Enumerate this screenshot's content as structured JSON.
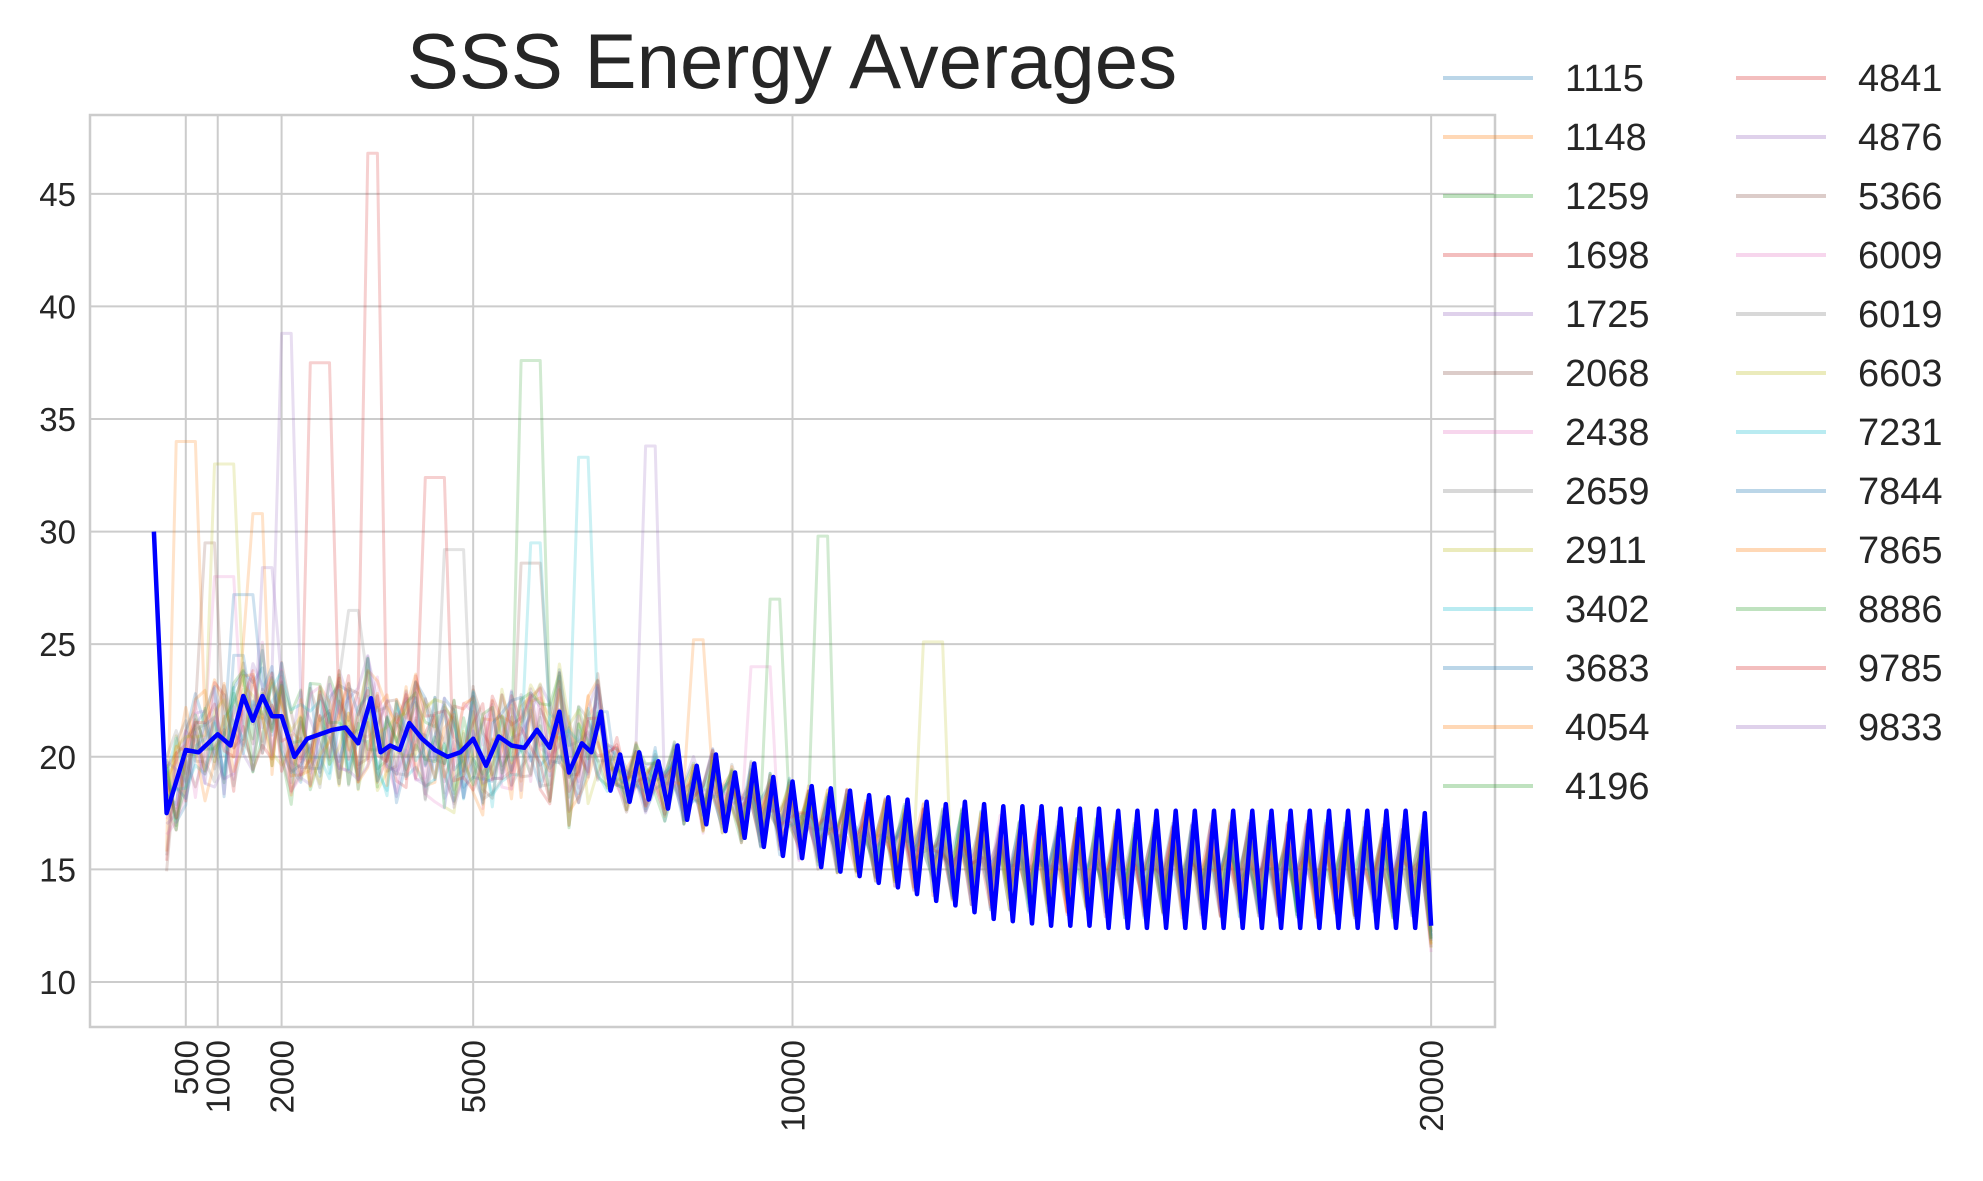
{
  "chart_data": {
    "type": "line",
    "title": "SSS Energy Averages",
    "xlabel": "",
    "ylabel": "",
    "xlim": [
      -1000,
      21000
    ],
    "ylim": [
      8,
      48.5
    ],
    "x_ticks": [
      500,
      1000,
      2000,
      5000,
      10000,
      20000
    ],
    "y_ticks": [
      10,
      15,
      20,
      25,
      30,
      35,
      40,
      45
    ],
    "grid": true,
    "legend_position": "outside-right",
    "legend_columns": 2,
    "background_series_style": "faint",
    "series": [
      {
        "name": "1115",
        "color": "#1f77b4",
        "peak": [
          7000,
          22
        ]
      },
      {
        "name": "1148",
        "color": "#ff7f0e",
        "peak": [
          500,
          34
        ]
      },
      {
        "name": "1259",
        "color": "#2ca02c",
        "peak": [
          5900,
          37.6
        ]
      },
      {
        "name": "1698",
        "color": "#d62728",
        "peak": [
          3400,
          46.8
        ]
      },
      {
        "name": "1725",
        "color": "#9467bd",
        "peak": [
          2100,
          38.8
        ]
      },
      {
        "name": "2068",
        "color": "#8c564b",
        "peak": [
          5900,
          28.6
        ]
      },
      {
        "name": "2438",
        "color": "#e377c2",
        "peak": [
          1100,
          28
        ]
      },
      {
        "name": "2659",
        "color": "#7f7f7f",
        "peak": [
          4700,
          29.2
        ]
      },
      {
        "name": "2911",
        "color": "#bcbd22",
        "peak": [
          12200,
          25.1
        ]
      },
      {
        "name": "3402",
        "color": "#17becf",
        "peak": [
          6700,
          33.3
        ]
      },
      {
        "name": "3683",
        "color": "#1f77b4",
        "peak": [
          1300,
          24.5
        ]
      },
      {
        "name": "4054",
        "color": "#ff7f0e",
        "peak": [
          1600,
          30.8
        ]
      },
      {
        "name": "4196",
        "color": "#2ca02c",
        "peak": [
          10500,
          29.8
        ]
      },
      {
        "name": "4841",
        "color": "#d62728",
        "peak": [
          2600,
          37.5
        ]
      },
      {
        "name": "4876",
        "color": "#9467bd",
        "peak": [
          7800,
          33.8
        ]
      },
      {
        "name": "5366",
        "color": "#8c564b",
        "peak": [
          900,
          29.5
        ]
      },
      {
        "name": "6009",
        "color": "#e377c2",
        "peak": [
          9500,
          24
        ]
      },
      {
        "name": "6019",
        "color": "#7f7f7f",
        "peak": [
          3100,
          26.5
        ]
      },
      {
        "name": "6603",
        "color": "#bcbd22",
        "peak": [
          1100,
          33
        ]
      },
      {
        "name": "7231",
        "color": "#17becf",
        "peak": [
          6000,
          29.5
        ]
      },
      {
        "name": "7844",
        "color": "#1f77b4",
        "peak": [
          1400,
          27.2
        ]
      },
      {
        "name": "7865",
        "color": "#ff7f0e",
        "peak": [
          8500,
          25.2
        ]
      },
      {
        "name": "8886",
        "color": "#2ca02c",
        "peak": [
          9700,
          27
        ]
      },
      {
        "name": "9785",
        "color": "#d62728",
        "peak": [
          4400,
          32.4
        ]
      },
      {
        "name": "9833",
        "color": "#9467bd",
        "peak": [
          1800,
          28.4
        ]
      }
    ],
    "average_series": {
      "color": "#0000ff",
      "points": [
        [
          0,
          30
        ],
        [
          200,
          17.5
        ],
        [
          500,
          20.3
        ],
        [
          700,
          20.2
        ],
        [
          1000,
          21.0
        ],
        [
          1200,
          20.5
        ],
        [
          1400,
          22.7
        ],
        [
          1550,
          21.6
        ],
        [
          1700,
          22.7
        ],
        [
          1850,
          21.8
        ],
        [
          2000,
          21.8
        ],
        [
          2200,
          20.0
        ],
        [
          2400,
          20.8
        ],
        [
          2600,
          21.0
        ],
        [
          2800,
          21.2
        ],
        [
          3000,
          21.3
        ],
        [
          3200,
          20.6
        ],
        [
          3400,
          22.6
        ],
        [
          3550,
          20.2
        ],
        [
          3700,
          20.5
        ],
        [
          3850,
          20.3
        ],
        [
          4000,
          21.5
        ],
        [
          4200,
          20.8
        ],
        [
          4400,
          20.3
        ],
        [
          4600,
          20.0
        ],
        [
          4800,
          20.2
        ],
        [
          5000,
          20.8
        ],
        [
          5200,
          19.6
        ],
        [
          5400,
          20.9
        ],
        [
          5600,
          20.5
        ],
        [
          5800,
          20.4
        ],
        [
          6000,
          21.2
        ],
        [
          6200,
          20.4
        ],
        [
          6350,
          22.0
        ],
        [
          6500,
          19.3
        ],
        [
          6700,
          20.6
        ],
        [
          6850,
          20.2
        ],
        [
          7000,
          22.0
        ],
        [
          7150,
          18.5
        ],
        [
          7300,
          20.1
        ],
        [
          7450,
          18.0
        ],
        [
          7600,
          20.2
        ],
        [
          7750,
          18.1
        ],
        [
          7900,
          19.8
        ],
        [
          8050,
          17.7
        ],
        [
          8200,
          20.5
        ],
        [
          8350,
          17.2
        ],
        [
          8500,
          19.6
        ],
        [
          8650,
          17.0
        ],
        [
          8800,
          20.1
        ],
        [
          8950,
          16.7
        ],
        [
          9100,
          19.3
        ],
        [
          9250,
          16.4
        ],
        [
          9400,
          19.7
        ],
        [
          9550,
          16.0
        ],
        [
          9700,
          19.1
        ],
        [
          9850,
          15.6
        ],
        [
          10000,
          18.9
        ],
        [
          10150,
          15.5
        ],
        [
          10300,
          18.7
        ],
        [
          10450,
          15.1
        ],
        [
          10600,
          18.6
        ],
        [
          10750,
          14.9
        ],
        [
          10900,
          18.5
        ],
        [
          11050,
          14.7
        ],
        [
          11200,
          18.3
        ],
        [
          11350,
          14.4
        ],
        [
          11500,
          18.2
        ],
        [
          11650,
          14.2
        ],
        [
          11800,
          18.1
        ],
        [
          11950,
          13.9
        ],
        [
          12100,
          18.0
        ],
        [
          12250,
          13.6
        ],
        [
          12400,
          17.9
        ],
        [
          12550,
          13.4
        ],
        [
          12700,
          18.0
        ],
        [
          12850,
          13.1
        ],
        [
          13000,
          17.9
        ],
        [
          13150,
          12.8
        ],
        [
          13300,
          17.8
        ],
        [
          13450,
          12.7
        ],
        [
          13600,
          17.8
        ],
        [
          13750,
          12.6
        ],
        [
          13900,
          17.8
        ],
        [
          14050,
          12.5
        ],
        [
          14200,
          17.7
        ],
        [
          14350,
          12.5
        ],
        [
          14500,
          17.7
        ],
        [
          14650,
          12.5
        ],
        [
          14800,
          17.7
        ],
        [
          14950,
          12.4
        ],
        [
          15100,
          17.6
        ],
        [
          15250,
          12.4
        ],
        [
          15400,
          17.6
        ],
        [
          15550,
          12.4
        ],
        [
          15700,
          17.6
        ],
        [
          15850,
          12.4
        ],
        [
          16000,
          17.6
        ],
        [
          16150,
          12.4
        ],
        [
          16300,
          17.6
        ],
        [
          16450,
          12.4
        ],
        [
          16600,
          17.6
        ],
        [
          16750,
          12.4
        ],
        [
          16900,
          17.6
        ],
        [
          17050,
          12.4
        ],
        [
          17200,
          17.6
        ],
        [
          17350,
          12.4
        ],
        [
          17500,
          17.6
        ],
        [
          17650,
          12.4
        ],
        [
          17800,
          17.6
        ],
        [
          17950,
          12.4
        ],
        [
          18100,
          17.6
        ],
        [
          18250,
          12.4
        ],
        [
          18400,
          17.6
        ],
        [
          18550,
          12.4
        ],
        [
          18700,
          17.6
        ],
        [
          18850,
          12.4
        ],
        [
          19000,
          17.6
        ],
        [
          19150,
          12.4
        ],
        [
          19300,
          17.6
        ],
        [
          19450,
          12.4
        ],
        [
          19600,
          17.6
        ],
        [
          19750,
          12.4
        ],
        [
          19900,
          17.5
        ],
        [
          20000,
          12.5
        ]
      ]
    }
  }
}
